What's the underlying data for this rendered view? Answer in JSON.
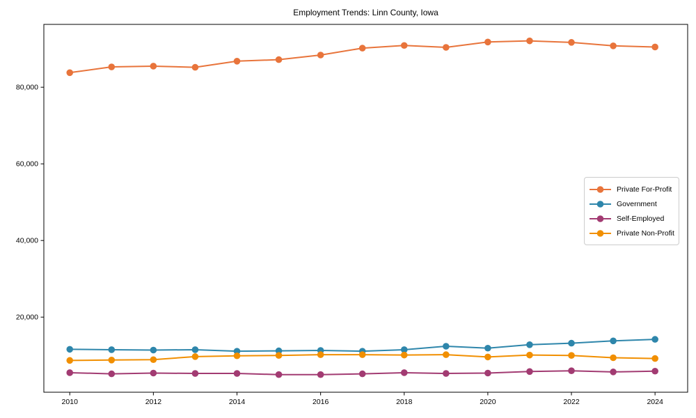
{
  "figure": {
    "background": "#ffffff",
    "spine_color": "#000000",
    "tick_label_color": "#000000"
  },
  "chart_data": {
    "type": "line",
    "title": "Employment Trends: Linn County, Iowa",
    "xlabel": "",
    "ylabel": "",
    "grid": false,
    "marker": "o",
    "x": [
      2010,
      2011,
      2012,
      2013,
      2014,
      2015,
      2016,
      2017,
      2018,
      2019,
      2020,
      2021,
      2022,
      2023,
      2024
    ],
    "series": [
      {
        "name": "Private For-Profit",
        "color": "#E8743B",
        "values": [
          83800,
          85300,
          85500,
          85200,
          86800,
          87200,
          88400,
          90200,
          90900,
          90400,
          91800,
          92100,
          91700,
          90800,
          90500
        ]
      },
      {
        "name": "Government",
        "color": "#2E86AB",
        "values": [
          11600,
          11500,
          11400,
          11500,
          11100,
          11200,
          11300,
          11100,
          11500,
          12400,
          11900,
          12800,
          13200,
          13800,
          14200
        ]
      },
      {
        "name": "Self-Employed",
        "color": "#A23B72",
        "values": [
          5500,
          5200,
          5400,
          5300,
          5300,
          5000,
          5000,
          5200,
          5500,
          5300,
          5400,
          5800,
          6000,
          5700,
          5900
        ]
      },
      {
        "name": "Private Non-Profit",
        "color": "#F18F01",
        "values": [
          8700,
          8800,
          8900,
          9700,
          9900,
          10000,
          10200,
          10200,
          10100,
          10200,
          9600,
          10100,
          10000,
          9400,
          9200
        ]
      }
    ],
    "xlim": [
      2009.38,
      2024.78
    ],
    "ylim": [
      400,
      96400
    ],
    "xticks": {
      "values": [
        2010,
        2012,
        2014,
        2016,
        2018,
        2020,
        2022,
        2024
      ],
      "labels": [
        "2010",
        "2012",
        "2014",
        "2016",
        "2018",
        "2020",
        "2022",
        "2024"
      ]
    },
    "yticks": {
      "values": [
        20000,
        40000,
        60000,
        80000
      ],
      "labels": [
        "20,000",
        "40,000",
        "60,000",
        "80,000"
      ]
    },
    "legend": {
      "position": "center right",
      "entries": [
        "Private For-Profit",
        "Government",
        "Self-Employed",
        "Private Non-Profit"
      ]
    }
  }
}
